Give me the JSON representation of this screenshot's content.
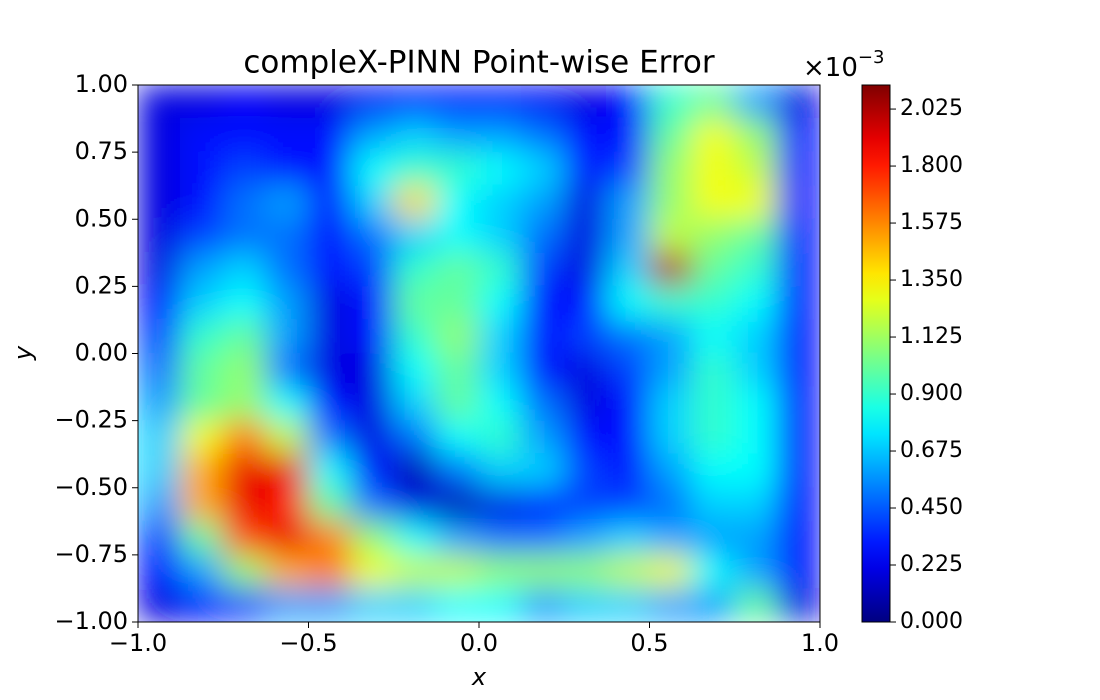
{
  "chart_data": {
    "type": "heatmap",
    "title": "compleX-PINN Point-wise Error",
    "xlabel": "x",
    "ylabel": "y",
    "colormap": "jet",
    "colorbar_offset": {
      "base": "×10",
      "exponent": "−3"
    },
    "xlim": [
      -1,
      1
    ],
    "ylim": [
      -1,
      1
    ],
    "clim": [
      0,
      2.12
    ],
    "xticks": [
      {
        "value": -1,
        "label": "−1.0"
      },
      {
        "value": -0.5,
        "label": "−0.5"
      },
      {
        "value": 0,
        "label": "0.0"
      },
      0.5,
      {
        "value": 1,
        "label": "1.0"
      }
    ],
    "yticks": [
      {
        "value": -1,
        "label": "−1.00"
      },
      {
        "value": -0.75,
        "label": "−0.75"
      },
      {
        "value": -0.5,
        "label": "−0.50"
      },
      {
        "value": -0.25,
        "label": "−0.25"
      },
      {
        "value": 0,
        "label": "0.00"
      },
      0.25,
      {
        "value": 0.5,
        "label": "0.50"
      },
      0.75,
      {
        "value": 1,
        "label": "1.00"
      }
    ],
    "cticks": [
      {
        "value": 0,
        "label": "0.000"
      },
      0.225,
      {
        "value": 0.45,
        "label": "0.450"
      },
      0.675,
      {
        "value": 0.9,
        "label": "0.900"
      },
      1.125,
      {
        "value": 1.35,
        "label": "1.350"
      },
      1.575,
      {
        "value": 1.8,
        "label": "1.800"
      },
      2.025
    ],
    "x": [
      -0.9375,
      -0.8125,
      -0.6875,
      -0.5625,
      -0.4375,
      -0.3125,
      -0.1875,
      -0.0625,
      0.0625,
      0.1875,
      0.3125,
      0.4375,
      0.5625,
      0.6875,
      0.8125,
      0.9375
    ],
    "y": [
      0.9375,
      0.8125,
      0.6875,
      0.5625,
      0.4375,
      0.3125,
      0.1875,
      0.0625,
      -0.0625,
      -0.1875,
      -0.3125,
      -0.4375,
      -0.5625,
      -0.6875,
      -0.8125,
      -0.9375
    ],
    "z": [
      [
        0.2,
        0.2,
        0.25,
        0.2,
        0.2,
        0.25,
        0.3,
        0.3,
        0.3,
        0.25,
        0.2,
        0.3,
        0.9,
        1.0,
        0.6,
        0.2
      ],
      [
        0.2,
        0.3,
        0.3,
        0.3,
        0.3,
        0.6,
        0.7,
        0.6,
        0.6,
        0.5,
        0.3,
        0.3,
        1.0,
        1.3,
        1.1,
        0.3
      ],
      [
        0.2,
        0.3,
        0.4,
        0.3,
        0.3,
        0.8,
        0.9,
        0.9,
        0.8,
        0.7,
        0.3,
        0.4,
        1.1,
        1.3,
        1.2,
        0.3
      ],
      [
        0.2,
        0.3,
        0.5,
        0.6,
        0.3,
        0.7,
        1.4,
        0.8,
        0.7,
        0.6,
        0.2,
        0.6,
        1.1,
        1.3,
        1.3,
        0.3
      ],
      [
        0.2,
        0.4,
        0.5,
        0.5,
        0.3,
        0.5,
        0.7,
        0.8,
        0.7,
        0.5,
        0.2,
        0.6,
        1.2,
        1.1,
        1.0,
        0.3
      ],
      [
        0.2,
        0.6,
        0.7,
        0.5,
        0.3,
        0.4,
        0.9,
        1.0,
        0.9,
        0.4,
        0.2,
        0.7,
        2.0,
        1.0,
        0.9,
        0.3
      ],
      [
        0.3,
        0.7,
        0.8,
        0.6,
        0.2,
        0.3,
        1.0,
        1.0,
        0.8,
        0.3,
        0.3,
        0.8,
        0.9,
        0.9,
        0.8,
        0.3
      ],
      [
        0.4,
        0.9,
        1.0,
        0.6,
        0.2,
        0.3,
        0.9,
        1.1,
        0.7,
        0.3,
        0.4,
        0.5,
        0.6,
        0.8,
        0.7,
        0.3
      ],
      [
        0.5,
        1.0,
        1.1,
        0.5,
        0.2,
        0.2,
        0.8,
        1.0,
        0.7,
        0.3,
        0.2,
        0.4,
        0.6,
        0.9,
        0.7,
        0.3
      ],
      [
        0.6,
        1.0,
        1.1,
        0.8,
        0.3,
        0.2,
        0.7,
        1.0,
        0.8,
        0.5,
        0.2,
        0.3,
        0.7,
        0.9,
        0.8,
        0.3
      ],
      [
        0.7,
        1.3,
        1.6,
        1.2,
        0.5,
        0.2,
        0.5,
        0.8,
        0.9,
        0.6,
        0.3,
        0.3,
        0.7,
        0.9,
        0.8,
        0.3
      ],
      [
        0.7,
        1.5,
        1.9,
        1.9,
        0.8,
        0.3,
        0.1,
        0.5,
        0.7,
        0.7,
        0.4,
        0.3,
        0.6,
        0.8,
        0.8,
        0.3
      ],
      [
        0.6,
        1.5,
        1.9,
        1.8,
        1.0,
        0.5,
        0.2,
        0.1,
        0.2,
        0.3,
        0.4,
        0.4,
        0.5,
        0.7,
        0.7,
        0.3
      ],
      [
        0.4,
        1.0,
        1.7,
        1.9,
        1.6,
        1.1,
        0.8,
        0.6,
        0.5,
        0.5,
        0.6,
        0.7,
        0.6,
        0.6,
        0.6,
        0.3
      ],
      [
        0.3,
        0.6,
        1.1,
        1.5,
        1.6,
        1.3,
        1.2,
        1.2,
        1.1,
        1.1,
        1.1,
        1.2,
        1.3,
        0.8,
        0.6,
        0.3
      ],
      [
        0.2,
        0.3,
        0.4,
        0.6,
        0.6,
        0.7,
        0.7,
        0.8,
        0.8,
        0.6,
        0.7,
        0.7,
        0.6,
        0.6,
        1.0,
        0.2
      ]
    ]
  }
}
